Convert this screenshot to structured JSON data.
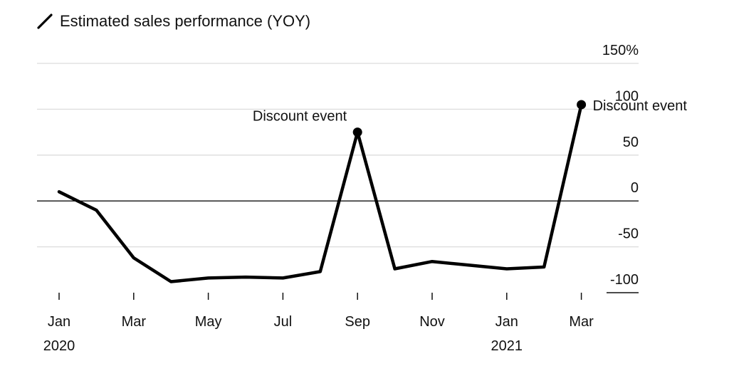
{
  "legend": {
    "label": "Estimated sales performance (YOY)",
    "icon": "line-swatch-icon"
  },
  "chart_data": {
    "type": "line",
    "title": "",
    "xlabel": "",
    "ylabel": "",
    "ylim": [
      -100,
      150
    ],
    "y_ticks": [
      150,
      100,
      50,
      0,
      -50,
      -100
    ],
    "y_tick_labels": [
      "150%",
      "100",
      "50",
      "0",
      "-50",
      "-100"
    ],
    "x_tick_labels": [
      {
        "month": "Jan",
        "year": "2020",
        "index": 0
      },
      {
        "month": "Mar",
        "year": "",
        "index": 2
      },
      {
        "month": "May",
        "year": "",
        "index": 4
      },
      {
        "month": "Jul",
        "year": "",
        "index": 6
      },
      {
        "month": "Sep",
        "year": "",
        "index": 8
      },
      {
        "month": "Nov",
        "year": "",
        "index": 10
      },
      {
        "month": "Jan",
        "year": "2021",
        "index": 12
      },
      {
        "month": "Mar",
        "year": "",
        "index": 14
      }
    ],
    "series": [
      {
        "name": "Estimated sales performance (YOY)",
        "color": "#000000",
        "x": [
          "2020-01",
          "2020-02",
          "2020-03",
          "2020-04",
          "2020-05",
          "2020-06",
          "2020-07",
          "2020-08",
          "2020-09",
          "2020-10",
          "2020-11",
          "2020-12",
          "2021-01",
          "2021-02",
          "2021-03"
        ],
        "values": [
          10,
          -10,
          -62,
          -88,
          -84,
          -83,
          -84,
          -77,
          75,
          -74,
          -66,
          -70,
          -74,
          -72,
          105
        ]
      }
    ],
    "annotations": [
      {
        "label": "Discount event",
        "index": 8,
        "value": 75,
        "position": "above-left"
      },
      {
        "label": "Discount event",
        "index": 14,
        "value": 105,
        "position": "right"
      }
    ],
    "grid": true,
    "legend_position": "top-left"
  }
}
